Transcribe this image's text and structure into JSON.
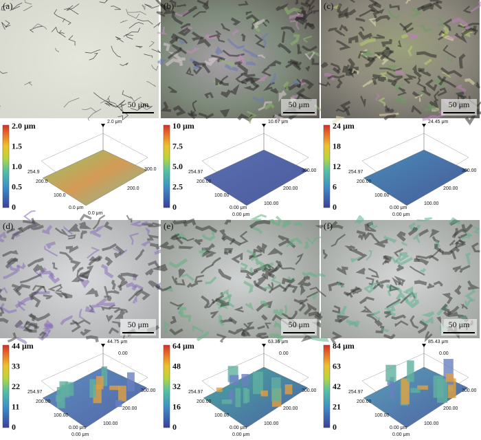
{
  "panels": [
    {
      "label": "(a)",
      "scale_bar": "50 μm",
      "colorbar": [
        "2.0 μm",
        "1.5",
        "1.0",
        "0.5",
        "0"
      ],
      "peak": "2.0 μm",
      "axis_labels": [
        "254.9",
        "200.0",
        "100.0",
        "0.0 μm",
        "0.0 μm",
        "200.0",
        "300.0"
      ]
    },
    {
      "label": "(b)",
      "scale_bar": "50 μm",
      "colorbar": [
        "10 μm",
        "7.5",
        "5.0",
        "2.5",
        "0"
      ],
      "peak": "10.67 μm",
      "axis_labels": [
        "254.97",
        "200.00",
        "100.00",
        "0.00 μm",
        "0.00 μm",
        "100.00",
        "200.00",
        "300.00"
      ]
    },
    {
      "label": "(c)",
      "scale_bar": "50 μm",
      "colorbar": [
        "24 μm",
        "18",
        "12",
        "6",
        "0"
      ],
      "peak": "24.45 μm",
      "axis_labels": [
        "254.97",
        "200.00",
        "100.00",
        "0.00 μm",
        "0.00 μm",
        "100.00",
        "200.00",
        "300.00"
      ]
    },
    {
      "label": "(d)",
      "scale_bar": "50 μm",
      "colorbar": [
        "44 μm",
        "33",
        "22",
        "11",
        "0"
      ],
      "peak": "44.75 μm",
      "top_label": "0.00",
      "axis_labels": [
        "254.97",
        "200.00",
        "100.00",
        "0.00 μm",
        "0.00 μm",
        "100.00",
        "200.00",
        "300.00"
      ]
    },
    {
      "label": "(e)",
      "scale_bar": "50 μm",
      "colorbar": [
        "64 μm",
        "48",
        "32",
        "16",
        "0"
      ],
      "peak": "63.36 μm",
      "top_label": "0.00",
      "axis_labels": [
        "254.97",
        "200.00",
        "100.00",
        "0.00 μm",
        "0.00 μm",
        "100.00",
        "200.00",
        "300.00"
      ]
    },
    {
      "label": "(f)",
      "scale_bar": "50 μm",
      "colorbar": [
        "84 μm",
        "63",
        "42",
        "21",
        "0"
      ],
      "peak": "85.43 μm",
      "top_label": "0.00",
      "axis_labels": [
        "254.97",
        "200.00",
        "100.00",
        "0.00 μm",
        "0.00 μm",
        "100.00",
        "200.00",
        "300.00"
      ]
    }
  ]
}
